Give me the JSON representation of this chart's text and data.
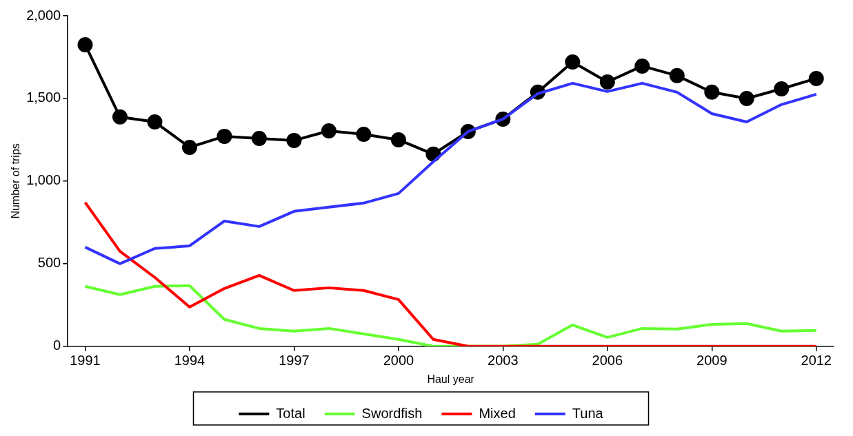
{
  "chart_data": {
    "type": "line",
    "xlabel": "Haul year",
    "ylabel": "Number of trips",
    "x": [
      1991,
      1992,
      1993,
      1994,
      1995,
      1996,
      1997,
      1998,
      1999,
      2000,
      2001,
      2002,
      2003,
      2004,
      2005,
      2006,
      2007,
      2008,
      2009,
      2010,
      2011,
      2012
    ],
    "xlim": [
      1990.5,
      2012.5
    ],
    "xticks": [
      1991,
      1994,
      1997,
      2000,
      2003,
      2006,
      2009,
      2012
    ],
    "ylim": [
      0,
      2000
    ],
    "yticks": [
      0,
      {
        "value": 500,
        "label": "500"
      },
      {
        "value": 1000,
        "label": "1,000"
      },
      {
        "value": 1500,
        "label": "1,500"
      },
      {
        "value": 2000,
        "label": "2,000"
      }
    ],
    "grid": false,
    "legend": "bottom",
    "series": [
      {
        "name": "Total",
        "color": "#000000",
        "marker": "circle",
        "values": [
          1825,
          1388,
          1358,
          1204,
          1271,
          1258,
          1246,
          1304,
          1283,
          1250,
          1163,
          1300,
          1375,
          1538,
          1721,
          1600,
          1696,
          1638,
          1538,
          1500,
          1558,
          1621
        ]
      },
      {
        "name": "Swordfish",
        "color": "#66ff33",
        "marker": "none",
        "values": [
          363,
          313,
          363,
          367,
          163,
          108,
          92,
          108,
          75,
          42,
          0,
          0,
          0,
          13,
          129,
          54,
          108,
          104,
          133,
          138,
          92,
          96
        ]
      },
      {
        "name": "Mixed",
        "color": "#ff0000",
        "marker": "none",
        "values": [
          871,
          575,
          417,
          238,
          350,
          429,
          338,
          354,
          338,
          283,
          42,
          0,
          0,
          0,
          0,
          0,
          0,
          0,
          0,
          0,
          0,
          0
        ]
      },
      {
        "name": "Tuna",
        "color": "#3333ff",
        "marker": "none",
        "values": [
          600,
          500,
          592,
          608,
          758,
          725,
          817,
          842,
          867,
          925,
          1117,
          1300,
          1375,
          1529,
          1592,
          1542,
          1592,
          1538,
          1408,
          1358,
          1463,
          1525
        ]
      }
    ]
  }
}
